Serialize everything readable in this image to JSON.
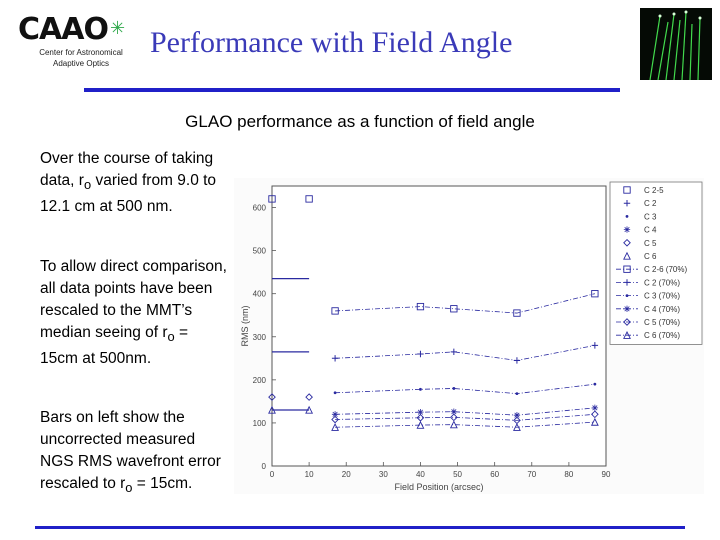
{
  "logo": {
    "word": "CAAO",
    "line1": "Center for Astronomical",
    "line2": "Adaptive Optics"
  },
  "title": "Performance with Field Angle",
  "subtitle": "GLAO performance as a function of field angle",
  "para1": {
    "pre": "Over the course of taking data, r",
    "sub": "o",
    "post": " varied from 9.0 to 12.1 cm at 500 nm."
  },
  "para2": {
    "pre": "To allow direct comparison, all data points have been rescaled to the MMT’s median seeing of r",
    "sub": "o",
    "post": " = 15cm at 500nm."
  },
  "para3": {
    "pre": "Bars on left show the uncorrected measured NGS RMS wavefront error rescaled to r",
    "sub": "o",
    "post": " = 15cm."
  },
  "colors": {
    "title": "#3a3ab8",
    "rule": "#2020c8",
    "plot": "#2a2aa0"
  },
  "chart_data": {
    "type": "line",
    "title": "",
    "xlabel": "Field Position (arcsec)",
    "ylabel": "RMS (nm)",
    "xlim": [
      0,
      90
    ],
    "ylim": [
      0,
      650
    ],
    "xticks": [
      0,
      10,
      20,
      30,
      40,
      50,
      60,
      70,
      80,
      90
    ],
    "yticks": [
      0,
      100,
      200,
      300,
      400,
      500,
      600
    ],
    "xtick_labels": [
      "0",
      "10",
      "20",
      "30",
      "40",
      "50",
      "60",
      "70",
      "80",
      "90"
    ],
    "ytick_labels": [
      "0",
      "100",
      "200",
      "300",
      "400",
      "500",
      "600"
    ],
    "series": [
      {
        "name": "C 2-5",
        "marker": "square",
        "line": "none",
        "x": [
          0,
          10
        ],
        "y": [
          620,
          620
        ]
      },
      {
        "name": "C 2",
        "marker": "plus",
        "line": "none",
        "x": [],
        "y": []
      },
      {
        "name": "C 3",
        "marker": "dot",
        "line": "none",
        "x": [],
        "y": []
      },
      {
        "name": "C 4",
        "marker": "star",
        "line": "none",
        "x": [],
        "y": []
      },
      {
        "name": "C 5",
        "marker": "diamond",
        "line": "none",
        "x": [
          0,
          10
        ],
        "y": [
          160,
          160
        ]
      },
      {
        "name": "C 6",
        "marker": "triangle",
        "line": "none",
        "x": [
          0,
          10
        ],
        "y": [
          130,
          130
        ]
      },
      {
        "name": "C 2-6 (70%)",
        "marker": "square",
        "line": "dashdot",
        "x": [
          17,
          40,
          49,
          66,
          87
        ],
        "y": [
          360,
          370,
          365,
          355,
          400
        ]
      },
      {
        "name": "C 2 (70%)",
        "marker": "plus",
        "line": "dashdot",
        "x": [
          17,
          40,
          49,
          66,
          87
        ],
        "y": [
          250,
          260,
          265,
          245,
          280
        ]
      },
      {
        "name": "C 3 (70%)",
        "marker": "dot",
        "line": "dashdot",
        "x": [
          17,
          40,
          49,
          66,
          87
        ],
        "y": [
          170,
          178,
          180,
          168,
          190
        ]
      },
      {
        "name": "C 4 (70%)",
        "marker": "star",
        "line": "dashdot",
        "x": [
          17,
          40,
          49,
          66,
          87
        ],
        "y": [
          120,
          125,
          126,
          118,
          135
        ]
      },
      {
        "name": "C 5 (70%)",
        "marker": "diamond",
        "line": "dashdot",
        "x": [
          17,
          40,
          49,
          66,
          87
        ],
        "y": [
          108,
          112,
          113,
          106,
          120
        ]
      },
      {
        "name": "C 6 (70%)",
        "marker": "triangle",
        "line": "dashdot",
        "x": [
          17,
          40,
          49,
          66,
          87
        ],
        "y": [
          90,
          95,
          96,
          90,
          102
        ]
      }
    ],
    "bars": [
      {
        "value": 435
      },
      {
        "value": 265
      },
      {
        "value": 130
      }
    ],
    "legend_position": "top-right"
  }
}
